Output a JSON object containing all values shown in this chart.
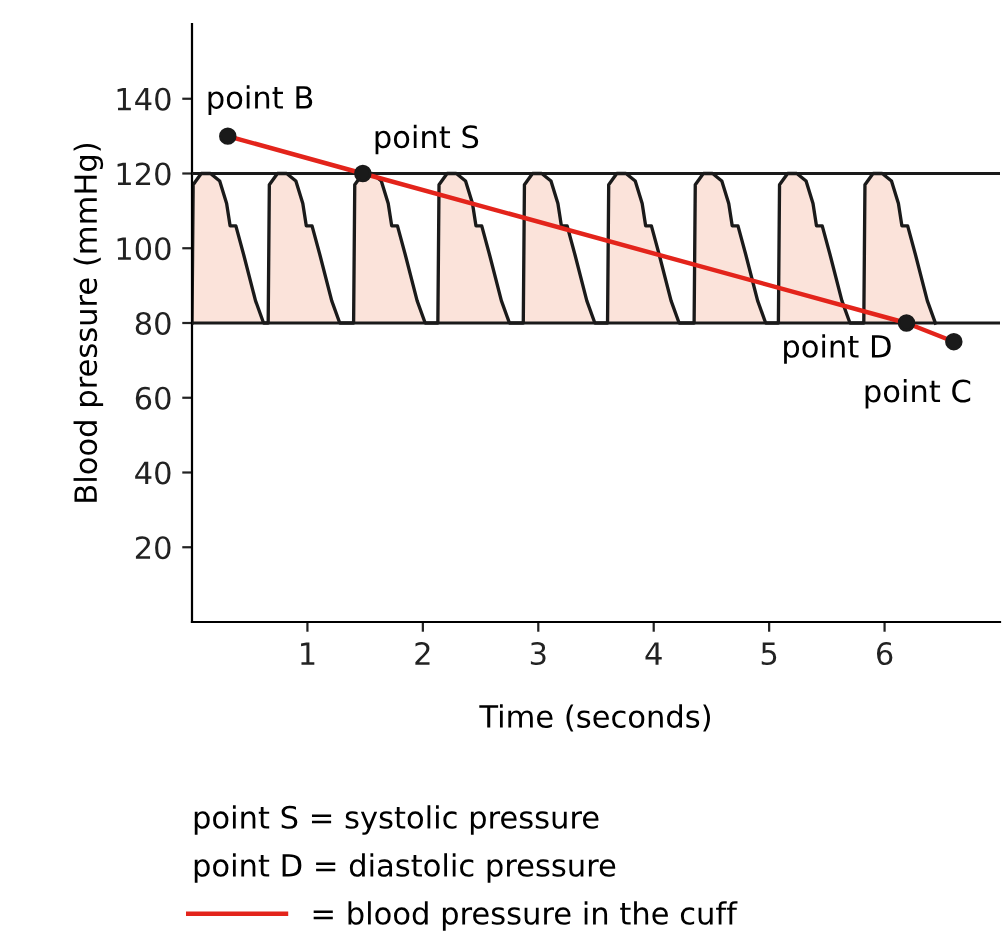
{
  "chart_data": {
    "type": "line",
    "xlabel": "Time (seconds)",
    "ylabel": "Blood pressure (mmHg)",
    "xlim": [
      0,
      7
    ],
    "ylim": [
      0,
      160
    ],
    "xticks": [
      1,
      2,
      3,
      4,
      5,
      6
    ],
    "yticks": [
      20,
      40,
      60,
      80,
      100,
      120,
      140
    ],
    "grid": false,
    "legend": "bottom",
    "series": [
      {
        "type": "area",
        "color": "#fbe3da",
        "x": [
          0,
          0.01,
          0.08,
          0.16,
          0.24,
          0.3,
          0.33,
          0.38,
          0.45,
          0.55,
          0.62,
          0.66,
          0.67,
          0.74,
          0.82,
          0.9,
          0.96,
          0.99,
          1.04,
          1.11,
          1.21,
          1.28,
          1.4,
          1.41,
          1.48,
          1.56,
          1.64,
          1.7,
          1.73,
          1.78,
          1.85,
          1.95,
          2.02,
          2.13,
          2.14,
          2.21,
          2.29,
          2.37,
          2.43,
          2.46,
          2.51,
          2.58,
          2.68,
          2.75,
          2.87,
          2.88,
          2.95,
          3.03,
          3.11,
          3.17,
          3.2,
          3.25,
          3.32,
          3.42,
          3.49,
          3.6,
          3.61,
          3.68,
          3.76,
          3.84,
          3.9,
          3.93,
          3.98,
          4.05,
          4.15,
          4.22,
          4.35,
          4.36,
          4.43,
          4.51,
          4.59,
          4.65,
          4.68,
          4.73,
          4.8,
          4.9,
          4.97,
          5.08,
          5.09,
          5.16,
          5.24,
          5.32,
          5.38,
          5.41,
          5.46,
          5.53,
          5.63,
          5.7,
          5.82,
          5.83,
          5.9,
          5.98,
          6.06,
          6.12,
          6.15,
          6.2,
          6.27,
          6.37,
          6.44
        ],
        "values": [
          80,
          117,
          120,
          120,
          118,
          112,
          106,
          106,
          98,
          86,
          80,
          80,
          117,
          120,
          120,
          118,
          112,
          106,
          106,
          98,
          86,
          80,
          80,
          117,
          120,
          120,
          118,
          112,
          106,
          106,
          98,
          86,
          80,
          80,
          117,
          120,
          120,
          118,
          112,
          106,
          106,
          98,
          86,
          80,
          80,
          117,
          120,
          120,
          118,
          112,
          106,
          106,
          98,
          86,
          80,
          80,
          117,
          120,
          120,
          118,
          112,
          106,
          106,
          98,
          86,
          80,
          80,
          117,
          120,
          120,
          118,
          112,
          106,
          106,
          98,
          86,
          80,
          80,
          117,
          120,
          120,
          118,
          112,
          106,
          106,
          98,
          86,
          80,
          80,
          117,
          120,
          120,
          118,
          112,
          106,
          106,
          98,
          86,
          80
        ]
      },
      {
        "name": "= blood pressure in the cuff",
        "color": "#e3241b",
        "x": [
          0.31,
          1.48,
          6.19,
          6.6
        ],
        "values": [
          130,
          120,
          80,
          75
        ]
      },
      {
        "type": "scatter",
        "color": "#1a1a1a",
        "x": [
          0.31,
          1.48,
          6.19,
          6.6
        ],
        "values": [
          130,
          120,
          80,
          75
        ]
      }
    ],
    "ref_lines": [
      {
        "axis": "y",
        "value": 80,
        "color": "#1a1a1a"
      },
      {
        "axis": "y",
        "value": 120,
        "color": "#1a1a1a"
      }
    ],
    "annotations": [
      {
        "text": "point B",
        "x": 0.31,
        "y": 130
      },
      {
        "text": "point S",
        "x": 1.48,
        "y": 120
      },
      {
        "text": "point D",
        "x": 6.19,
        "y": 80
      },
      {
        "text": "point C",
        "x": 6.6,
        "y": 75
      },
      "point S = systolic pressure",
      "point D = diastolic pressure"
    ]
  }
}
